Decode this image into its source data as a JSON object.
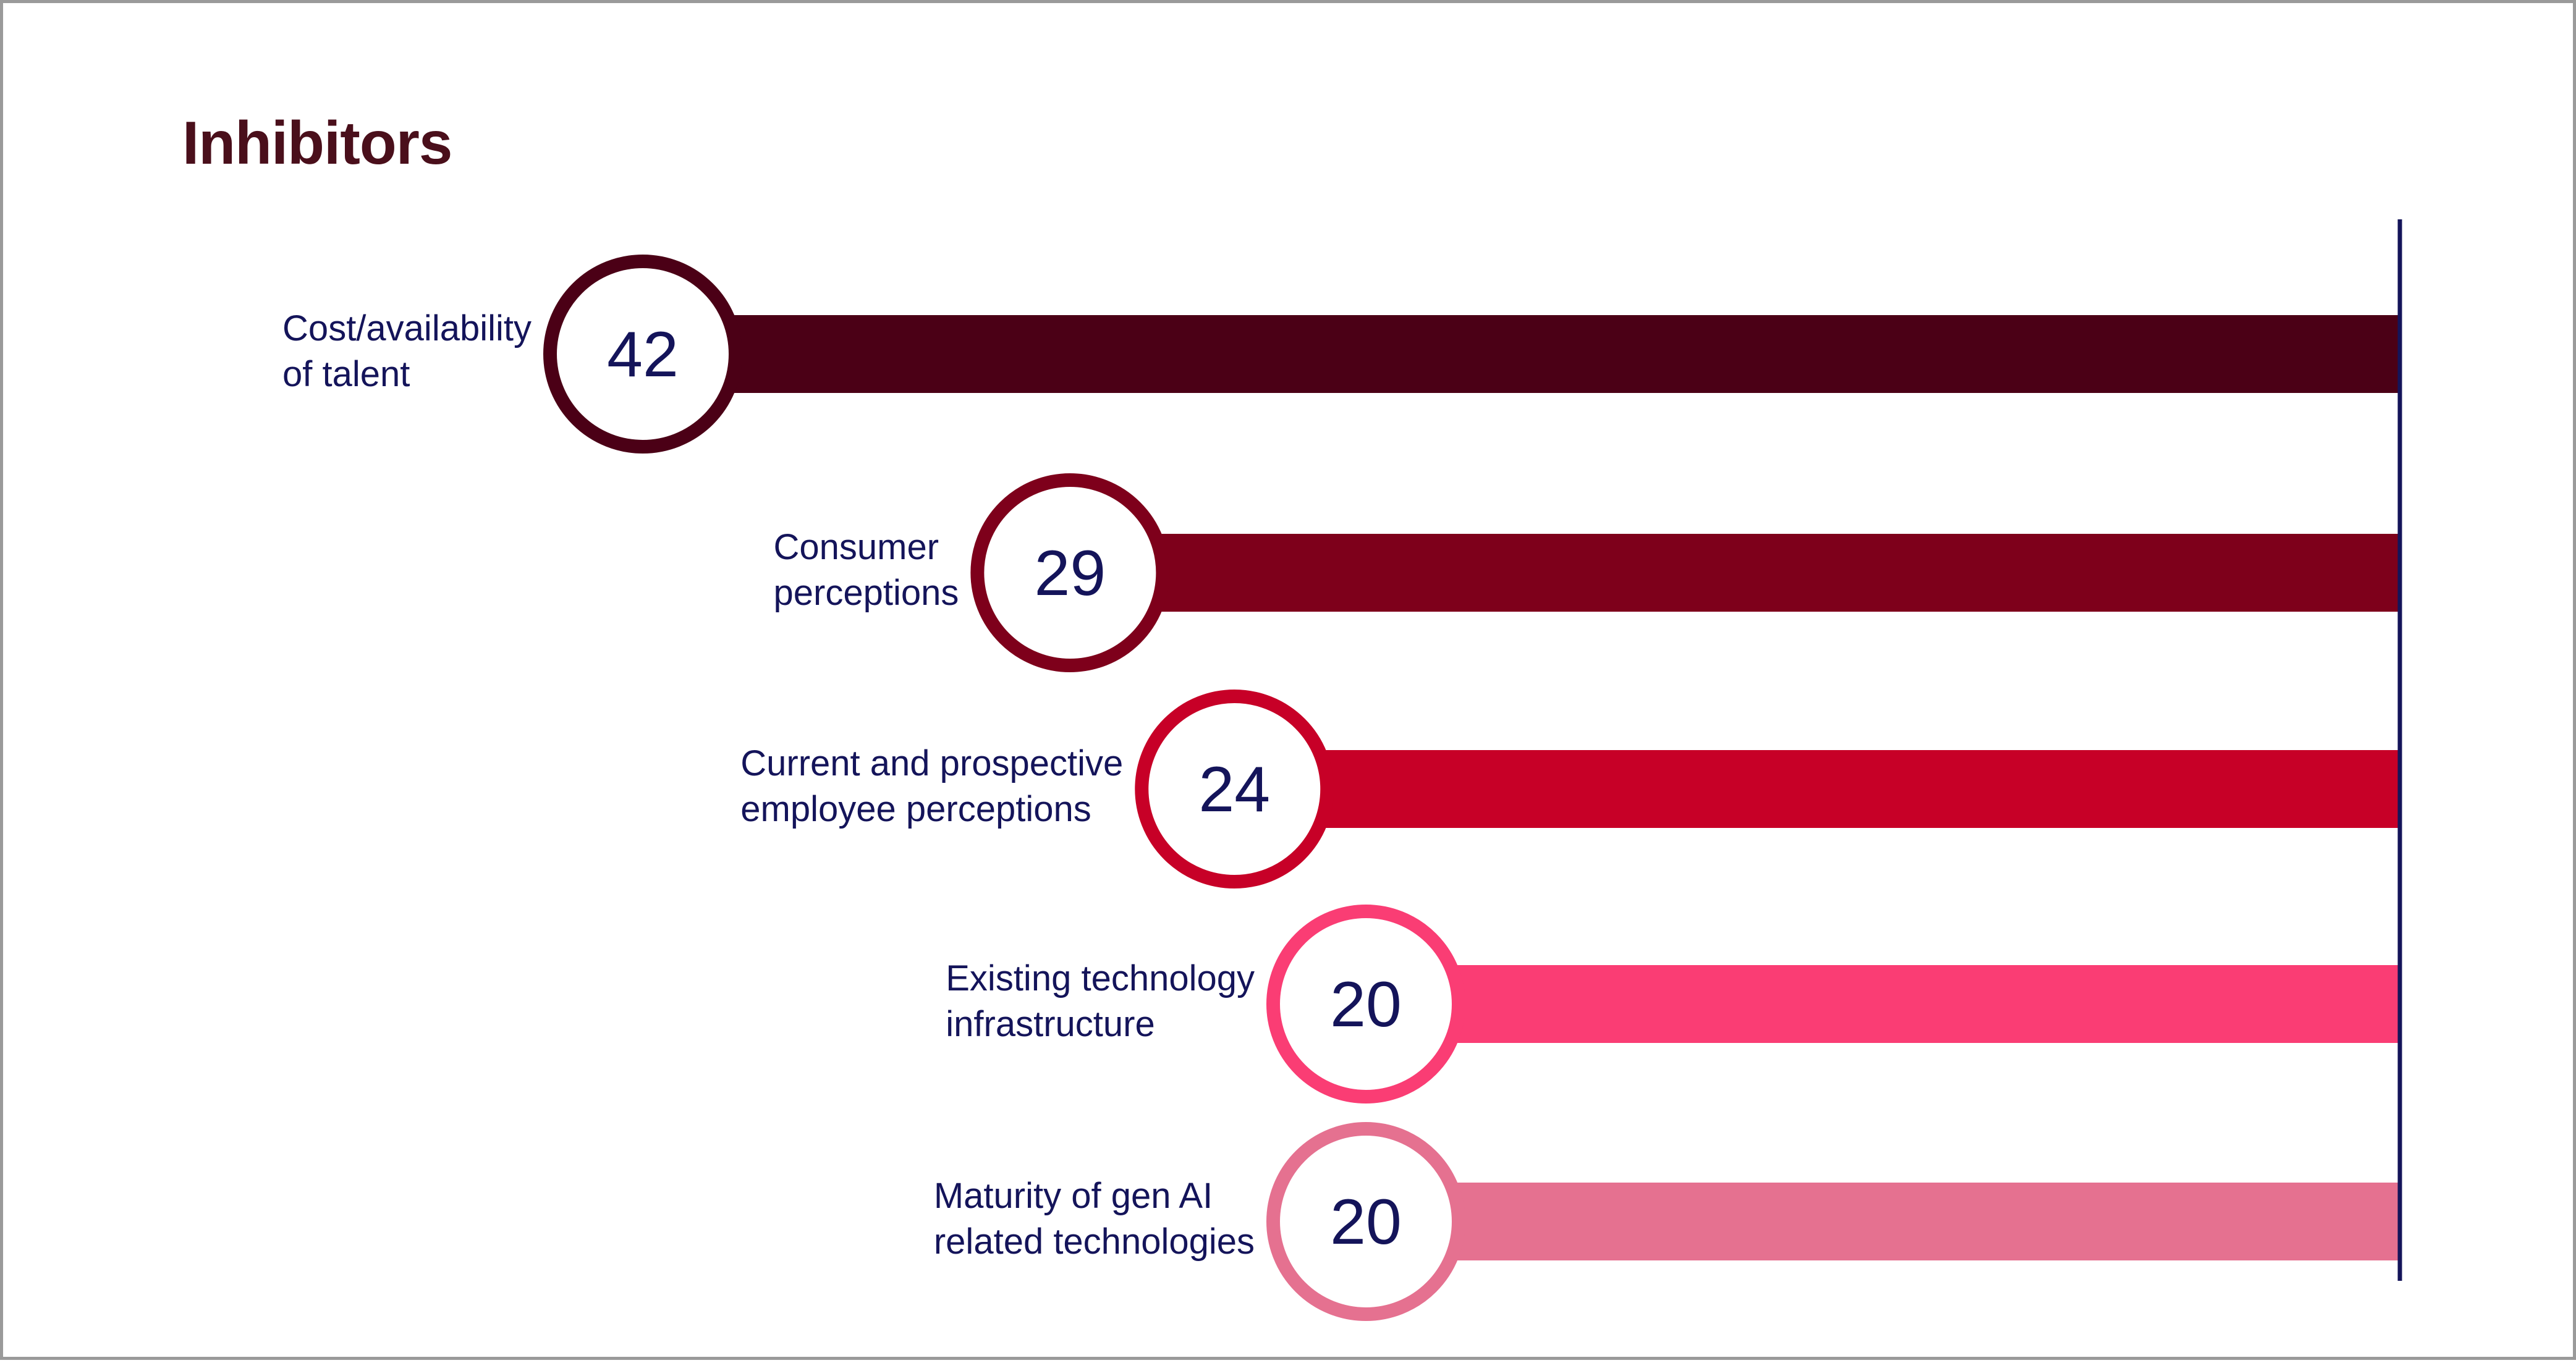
{
  "chart_data": {
    "type": "bar",
    "title": "Inhibitors",
    "categories": [
      [
        "Cost/availability",
        "of talent"
      ],
      [
        "Consumer",
        "perceptions"
      ],
      [
        "Current and prospective",
        "employee perceptions"
      ],
      [
        "Existing technology",
        "infrastructure"
      ],
      [
        "Maturity of gen AI",
        "related technologies"
      ]
    ],
    "values": [
      42,
      29,
      24,
      20,
      20
    ],
    "colors": [
      "#4b0016",
      "#7e001b",
      "#c70027",
      "#fa3d74",
      "#e57190"
    ],
    "axis_line_color": "#14145a",
    "text_color": "#14145a"
  }
}
